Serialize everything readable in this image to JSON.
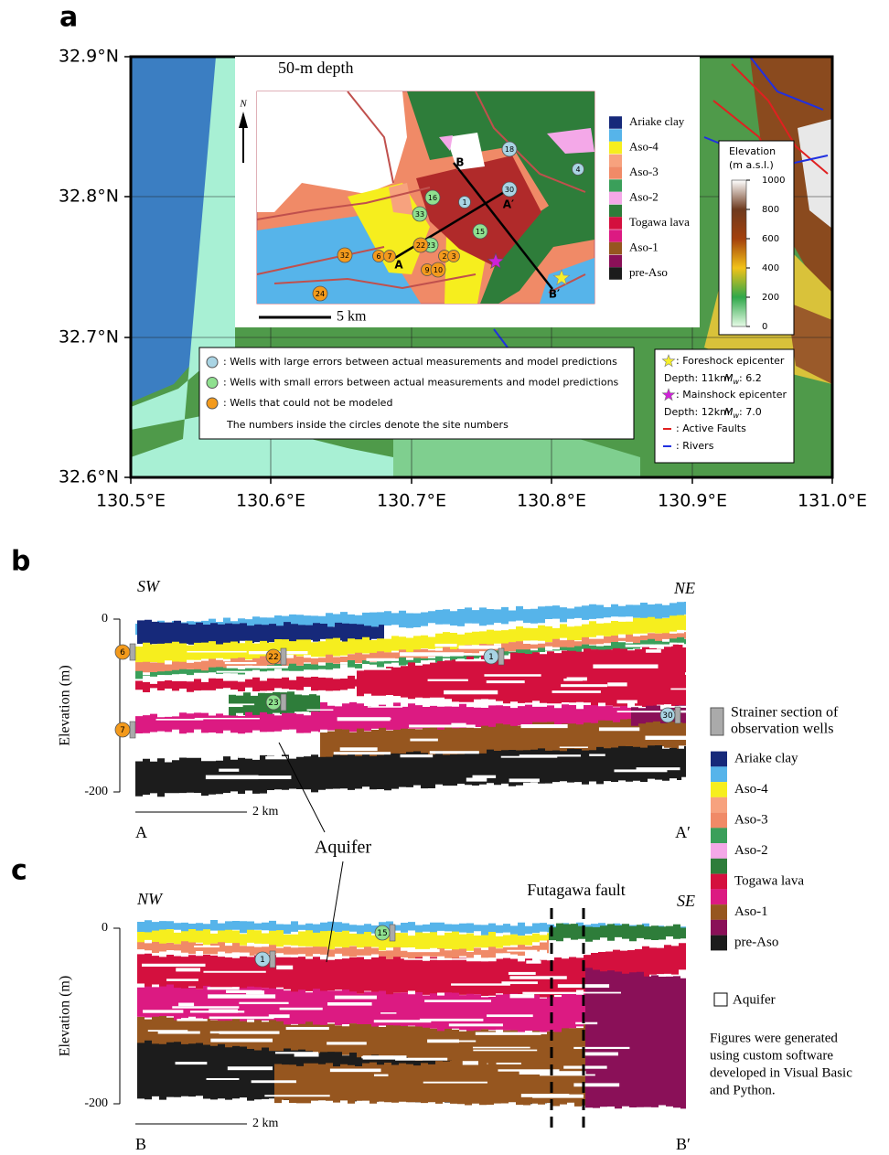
{
  "panel_a": {
    "label": "a",
    "lat_ticks": [
      "32.9°N",
      "32.8°N",
      "32.7°N",
      "32.6°N"
    ],
    "lon_ticks": [
      "130.5°E",
      "130.6°E",
      "130.7°E",
      "130.8°E",
      "130.9°E",
      "131.0°E"
    ],
    "inset_title": "50-m depth",
    "north": "N",
    "scale_bar": "5 km",
    "section_ends": [
      "A",
      "A′",
      "B",
      "B′"
    ],
    "elevation_legend": {
      "title": "Elevation",
      "unit": "(m a.s.l.)",
      "ticks": [
        "1000",
        "800",
        "600",
        "400",
        "200",
        "0"
      ]
    },
    "wells": [
      {
        "label": "18",
        "group": 0
      },
      {
        "label": "4",
        "group": 0
      },
      {
        "label": "1",
        "group": 0
      },
      {
        "label": "30",
        "group": 0
      },
      {
        "label": "16",
        "group": 1
      },
      {
        "label": "33",
        "group": 1
      },
      {
        "label": "15",
        "group": 1
      },
      {
        "label": "23",
        "group": 1
      },
      {
        "label": "22",
        "group": 2
      },
      {
        "label": "32",
        "group": 2
      },
      {
        "label": "6",
        "group": 2
      },
      {
        "label": "7",
        "group": 2
      },
      {
        "label": "2",
        "group": 2
      },
      {
        "label": "3",
        "group": 2
      },
      {
        "label": "9",
        "group": 2
      },
      {
        "label": "10",
        "group": 2
      },
      {
        "label": "24",
        "group": 2
      }
    ],
    "well_groups": [
      {
        "color": "#a9d4e4",
        "text": ": Wells with large errors between actual measurements and model predictions"
      },
      {
        "color": "#8fe08f",
        "text": ": Wells with small errors between actual measurements and model predictions"
      },
      {
        "color": "#f39a1c",
        "text": ": Wells that could not be modeled"
      }
    ],
    "well_note": "The numbers inside the circles denote the site numbers",
    "events": [
      {
        "color": "#f5ef2a",
        "text": ": Foreshock epicenter",
        "depth": "Depth: 11km",
        "symbol": "M",
        "subscript": "w",
        "value": ": 6.2"
      },
      {
        "color": "#d020d8",
        "text": ": Mainshock epicenter",
        "depth": "Depth: 12km",
        "symbol": "M",
        "subscript": "w",
        "value": ": 7.0"
      }
    ],
    "lines": [
      {
        "color": "#e02020",
        "text": ": Active Faults"
      },
      {
        "color": "#2030e0",
        "text": ": Rivers"
      }
    ]
  },
  "geology_units": [
    {
      "name": "Ariake clay",
      "colors": [
        "#16297a"
      ]
    },
    {
      "name": "Aso-4",
      "colors": [
        "#56b4ea",
        "#f6ee1e"
      ]
    },
    {
      "name": "Aso-3",
      "colors": [
        "#f7a27e",
        "#f08a67"
      ]
    },
    {
      "name": "Aso-2",
      "colors": [
        "#3a9f5a",
        "#f4a8e8"
      ]
    },
    {
      "name": "Togawa lava",
      "colors": [
        "#2e7d3a",
        "#d4103e"
      ]
    },
    {
      "name": "Aso-1",
      "colors": [
        "#dc1a82",
        "#96561f"
      ]
    },
    {
      "name": "pre-Aso",
      "colors": [
        "#8a1058",
        "#1c1c1c"
      ]
    }
  ],
  "panel_b": {
    "label": "b",
    "left_dir": "SW",
    "right_dir": "NE",
    "ticks": [
      "0",
      "-200"
    ],
    "axis_label": "Elevation  (m)",
    "scale": "2 km",
    "left_end": "A",
    "right_end": "A′",
    "wells": [
      {
        "label": "6",
        "group": 2
      },
      {
        "label": "22",
        "group": 2
      },
      {
        "label": "1",
        "group": 0
      },
      {
        "label": "23",
        "group": 1
      },
      {
        "label": "30",
        "group": 0
      },
      {
        "label": "7",
        "group": 2
      }
    ]
  },
  "panel_c": {
    "label": "c",
    "left_dir": "NW",
    "right_dir": "SE",
    "ticks": [
      "0",
      "-200"
    ],
    "axis_label": "Elevation  (m)",
    "scale": "2 km",
    "left_end": "B",
    "right_end": "B′",
    "fault": "Futagawa fault",
    "wells": [
      {
        "label": "15",
        "group": 1
      },
      {
        "label": "1",
        "group": 0
      }
    ]
  },
  "aquifer_label": "Aquifer",
  "legend": {
    "strainer": [
      "Strainer section of",
      "observation wells"
    ],
    "aquifer": "Aquifer",
    "note": [
      "Figures were generated",
      "using custom software",
      "developed in Visual Basic",
      "and Python."
    ]
  }
}
